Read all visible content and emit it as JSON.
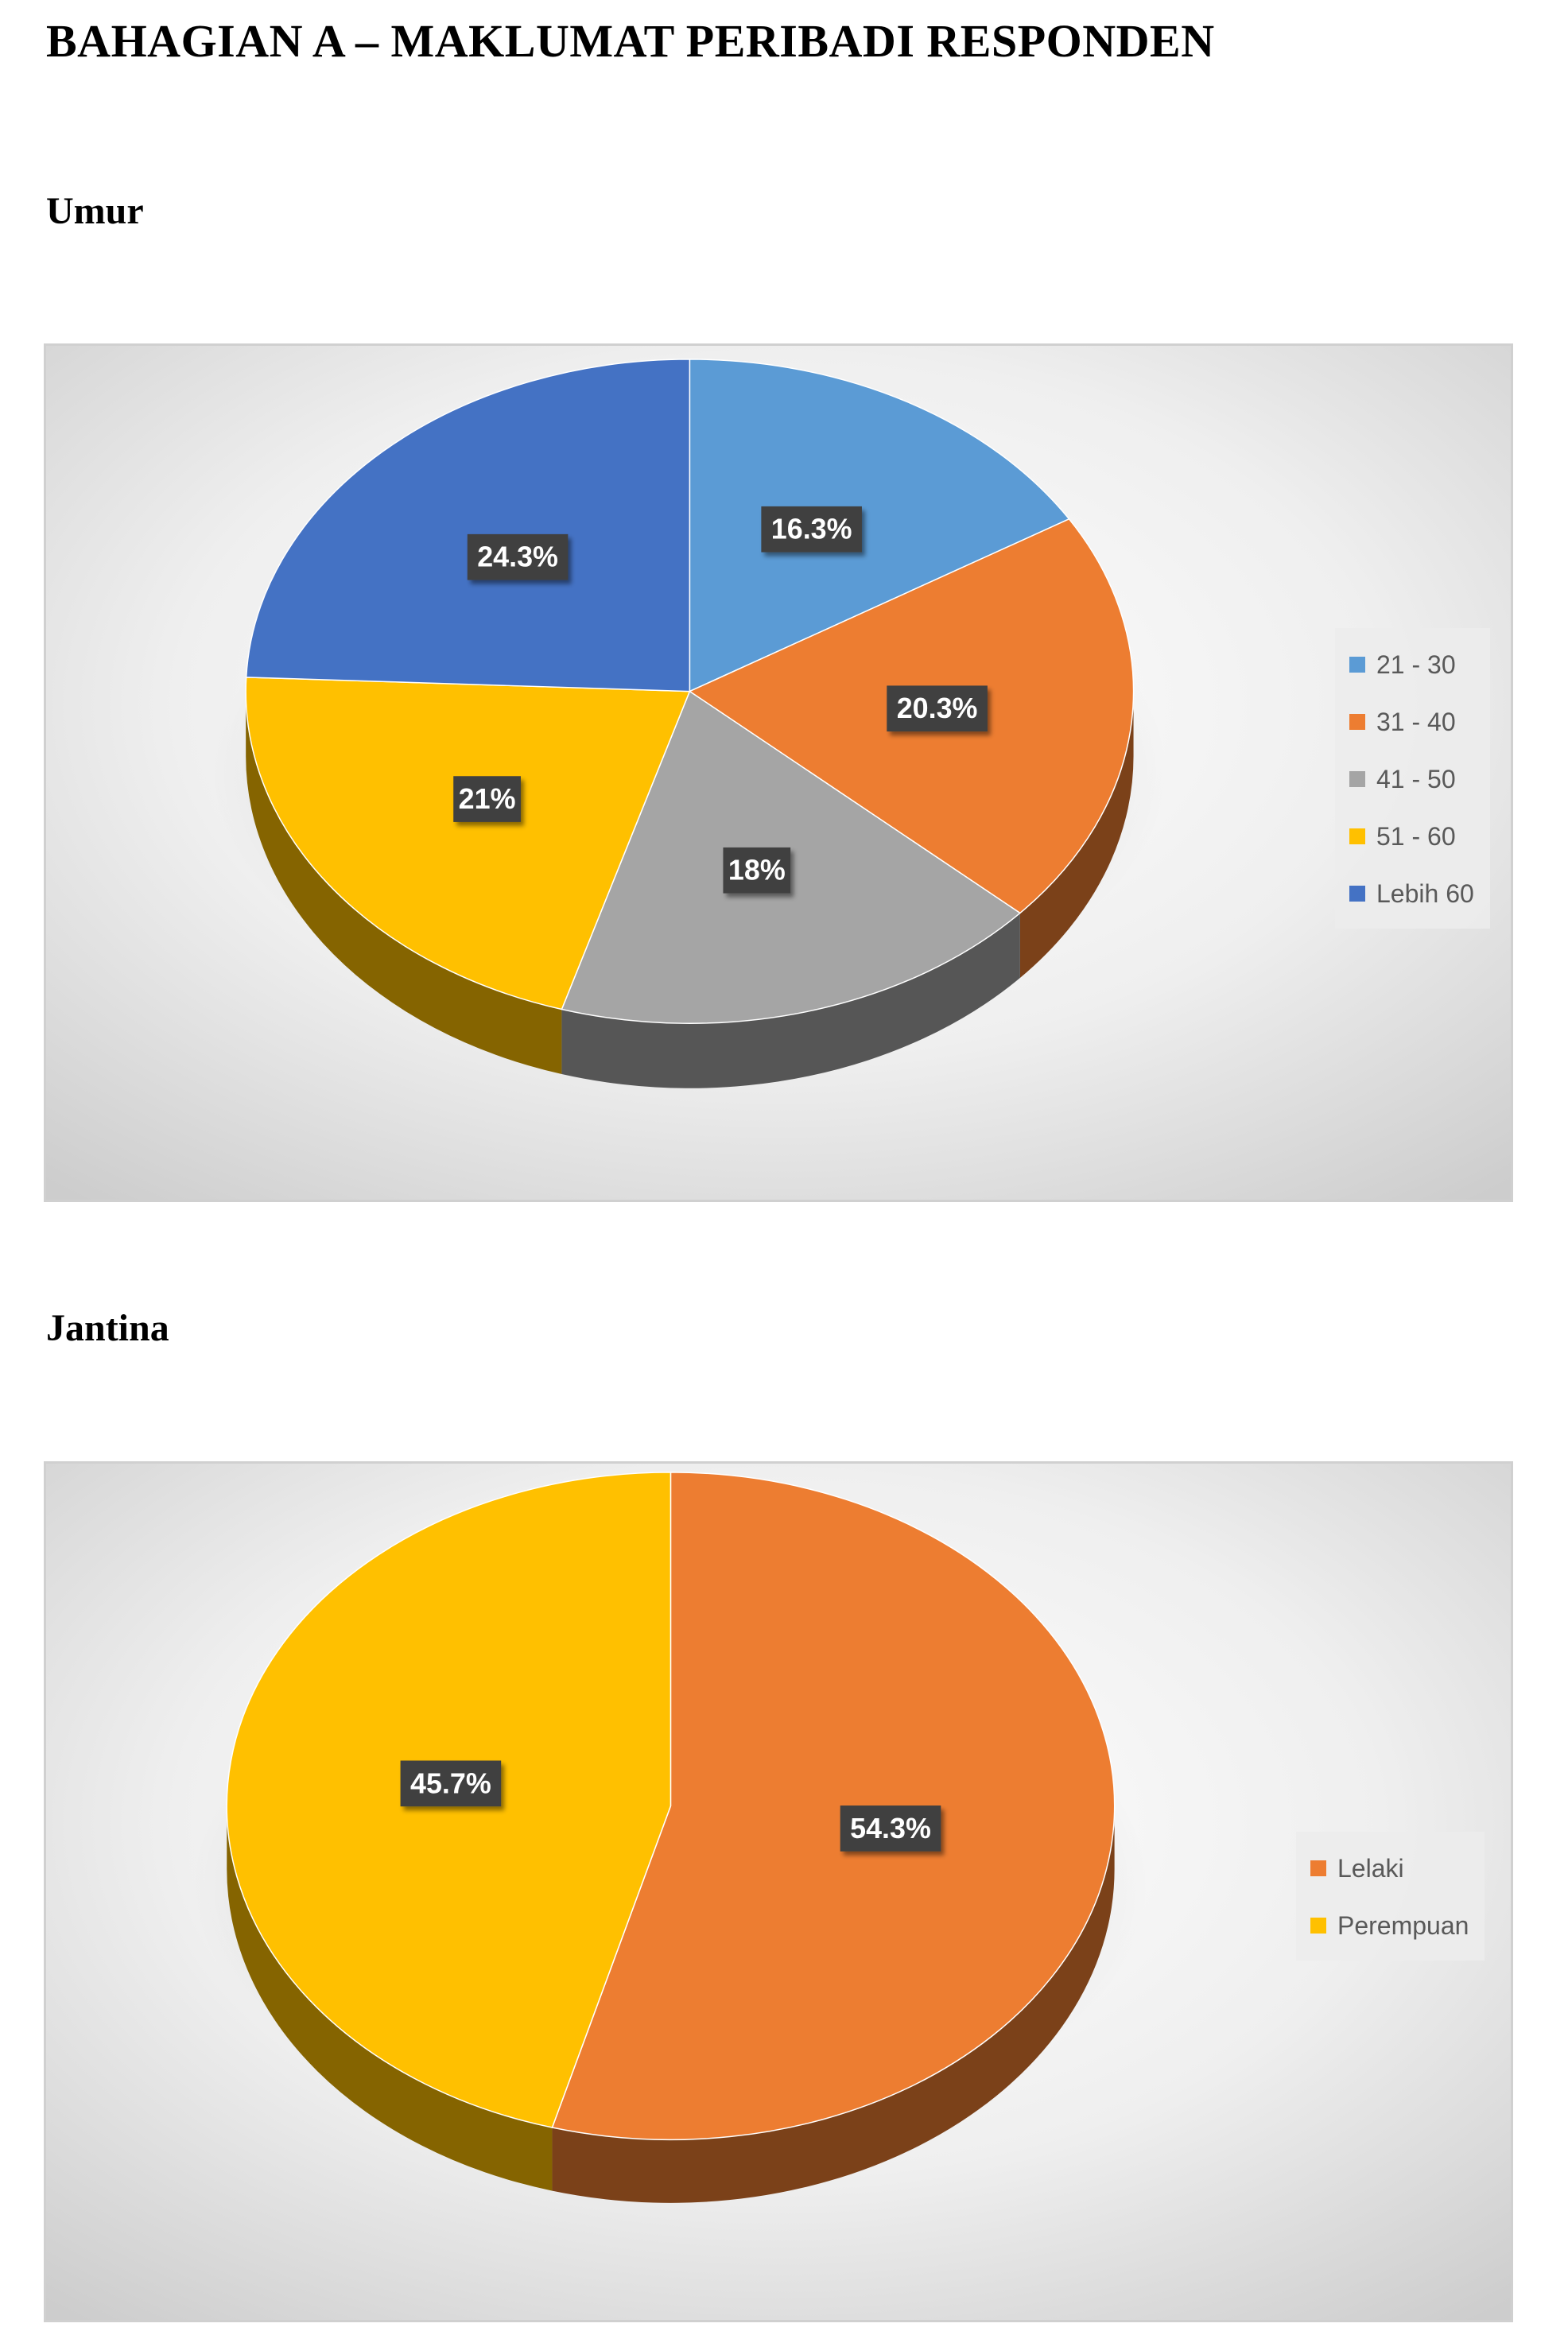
{
  "page": {
    "heading": "BAHAGIAN A – MAKLUMAT PERIBADI RESPONDEN",
    "sections": [
      {
        "heading": "Umur"
      },
      {
        "heading": "Jantina"
      }
    ]
  },
  "chart_data": [
    {
      "type": "pie",
      "style": "3d-pie",
      "title": "",
      "legend_position": "right",
      "categories": [
        "21 - 30",
        "31 - 40",
        "41 - 50",
        "51 - 60",
        "Lebih 60"
      ],
      "values": [
        16.3,
        20.3,
        18,
        21,
        24.3
      ],
      "labels": [
        "16.3%",
        "20.3%",
        "18%",
        "21%",
        "24.3%"
      ],
      "colors": [
        "#5B9BD5",
        "#ED7D31",
        "#A5A5A5",
        "#FFC000",
        "#4472C4"
      ]
    },
    {
      "type": "pie",
      "style": "3d-pie",
      "title": "",
      "legend_position": "right",
      "categories": [
        "Lelaki",
        "Perempuan"
      ],
      "values": [
        54.3,
        45.7
      ],
      "labels": [
        "54.3%",
        "45.7%"
      ],
      "colors": [
        "#ED7D31",
        "#FFC000"
      ]
    }
  ]
}
